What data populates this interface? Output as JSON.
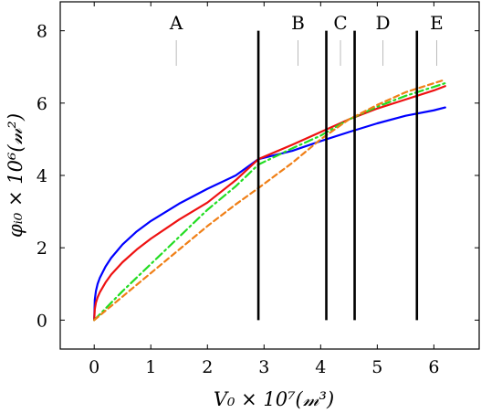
{
  "chart_data": {
    "type": "line",
    "title": "",
    "xlabel": "V₀ × 10⁷(𝓂³)",
    "ylabel": "φᵢ₀ × 10⁶(𝓂²)",
    "xlim": [
      -0.6,
      6.8
    ],
    "ylim": [
      -0.8,
      8.8
    ],
    "xticks": [
      "0",
      "1",
      "2",
      "3",
      "4",
      "5",
      "6"
    ],
    "yticks": [
      "0",
      "2",
      "4",
      "6",
      "8"
    ],
    "grid": false,
    "legend": "none",
    "series": [
      {
        "color": "#0000ff",
        "dash": "solid",
        "x": [
          0,
          0.01,
          0.03,
          0.06,
          0.1,
          0.2,
          0.3,
          0.5,
          0.75,
          1.0,
          1.5,
          2.0,
          2.5,
          2.9,
          3.5,
          4.0,
          4.5,
          5.0,
          5.5,
          6.0,
          6.2
        ],
        "y": [
          0,
          0.56,
          0.8,
          1.0,
          1.17,
          1.48,
          1.72,
          2.09,
          2.45,
          2.74,
          3.22,
          3.63,
          4.0,
          4.45,
          4.68,
          4.95,
          5.2,
          5.44,
          5.65,
          5.8,
          5.88
        ]
      },
      {
        "color": "#ee1111",
        "dash": "solid",
        "x": [
          0,
          0.01,
          0.03,
          0.06,
          0.1,
          0.2,
          0.3,
          0.5,
          0.75,
          1.0,
          1.5,
          2.0,
          2.5,
          2.9,
          3.5,
          4.0,
          4.5,
          5.0,
          5.5,
          6.0,
          6.2
        ],
        "y": [
          0,
          0.3,
          0.48,
          0.63,
          0.77,
          1.04,
          1.26,
          1.6,
          1.95,
          2.25,
          2.78,
          3.25,
          3.87,
          4.45,
          4.85,
          5.2,
          5.55,
          5.85,
          6.1,
          6.35,
          6.47
        ]
      },
      {
        "color": "#22dd22",
        "dash": "dashdot",
        "x": [
          0,
          0.5,
          1.0,
          1.5,
          2.0,
          2.5,
          2.9,
          3.5,
          4.0,
          4.5,
          5.0,
          5.5,
          6.0,
          6.2
        ],
        "y": [
          0,
          0.8,
          1.55,
          2.3,
          3.05,
          3.7,
          4.3,
          4.75,
          5.1,
          5.55,
          5.9,
          6.2,
          6.45,
          6.55
        ]
      },
      {
        "color": "#f07f16",
        "dash": "dashed",
        "x": [
          0,
          0.5,
          1.0,
          1.5,
          2.0,
          2.5,
          2.9,
          3.5,
          4.0,
          4.5,
          5.0,
          5.5,
          6.0,
          6.2
        ],
        "y": [
          0,
          0.65,
          1.3,
          1.95,
          2.6,
          3.2,
          3.65,
          4.35,
          5.0,
          5.55,
          5.95,
          6.3,
          6.55,
          6.65
        ]
      }
    ],
    "vertical_lines": [
      2.9,
      4.1,
      4.6,
      5.7
    ],
    "regions": [
      {
        "label": "A",
        "x": 1.45
      },
      {
        "label": "B",
        "x": 3.6
      },
      {
        "label": "C",
        "x": 4.35
      },
      {
        "label": "D",
        "x": 5.1
      },
      {
        "label": "E",
        "x": 6.05
      }
    ]
  }
}
